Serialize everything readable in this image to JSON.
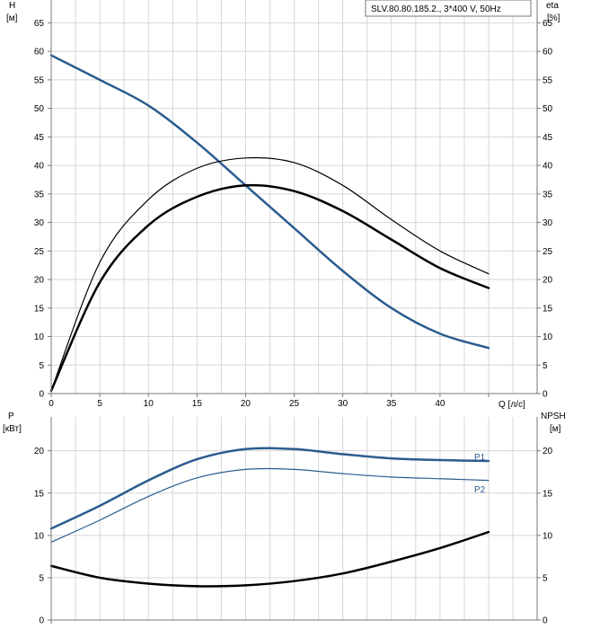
{
  "model_label": "SLV.80.80.185.2., 3*400 V, 50Hz",
  "chart_data": [
    {
      "type": "line",
      "id": "performance",
      "x_label": "Q [л/с]",
      "y_left_label": "H",
      "y_left_unit": "[м]",
      "y_right_label": "eta",
      "y_right_unit": "[%]",
      "xlim": [
        0,
        45
      ],
      "ylim": [
        0,
        69
      ],
      "grid": true,
      "x_ticks": [
        0,
        5,
        10,
        15,
        20,
        25,
        30,
        35,
        40
      ],
      "x_tick_labels": [
        "0",
        "5",
        "10",
        "15",
        "20",
        "25",
        "30",
        "35",
        "40"
      ],
      "y_left_ticks": [
        0,
        5,
        10,
        15,
        20,
        25,
        30,
        35,
        40,
        45,
        50,
        55,
        60,
        65
      ],
      "y_left_tick_labels": [
        "0",
        "5",
        "10",
        "15",
        "20",
        "25",
        "30",
        "35",
        "40",
        "45",
        "50",
        "55",
        "60",
        "65"
      ],
      "y_right_ticks": [
        0,
        5,
        10,
        15,
        20,
        25,
        30,
        35,
        40,
        45,
        50,
        55,
        60,
        65
      ],
      "y_right_tick_labels": [
        "0",
        "5",
        "10",
        "15",
        "20",
        "25",
        "30",
        "35",
        "40",
        "45",
        "50",
        "55",
        "60",
        "65"
      ],
      "series": [
        {
          "key": "head",
          "color": "#2b5c8f",
          "width": 2.5,
          "x": [
            0,
            5,
            10,
            15,
            20,
            25,
            30,
            35,
            40,
            45
          ],
          "y": [
            59.3,
            55.0,
            50.5,
            44.0,
            36.5,
            29.0,
            21.5,
            15.0,
            10.5,
            8.0
          ]
        },
        {
          "key": "eta_thin",
          "color": "#000000",
          "width": 1.2,
          "x": [
            0,
            5,
            10,
            15,
            20,
            25,
            30,
            35,
            40,
            45
          ],
          "y": [
            0.5,
            23.0,
            34.0,
            39.5,
            41.3,
            40.5,
            36.5,
            30.5,
            25.0,
            21.0
          ]
        },
        {
          "key": "eta_thick",
          "color": "#000000",
          "width": 2.5,
          "x": [
            0,
            5,
            10,
            15,
            20,
            25,
            30,
            35,
            40,
            45
          ],
          "y": [
            0.5,
            19.5,
            29.5,
            34.5,
            36.5,
            35.5,
            32.0,
            27.0,
            22.0,
            18.5
          ]
        }
      ]
    },
    {
      "type": "line",
      "id": "power",
      "y_left_label": "P",
      "y_left_unit": "[кВт]",
      "y_right_label": "NPSH",
      "y_right_unit": "[м]",
      "xlim": [
        0,
        45
      ],
      "ylim": [
        0,
        24
      ],
      "grid": true,
      "y_left_ticks": [
        0,
        5,
        10,
        15,
        20
      ],
      "y_left_tick_labels": [
        "0",
        "5",
        "10",
        "15",
        "20"
      ],
      "y_right_ticks": [
        0,
        5,
        10,
        15,
        20
      ],
      "y_right_tick_labels": [
        "0",
        "5",
        "10",
        "15",
        "20"
      ],
      "series": [
        {
          "key": "p1",
          "name": "P1",
          "color": "#2b5c8f",
          "width": 2.5,
          "x": [
            0,
            5,
            10,
            15,
            20,
            25,
            30,
            35,
            40,
            45
          ],
          "y": [
            10.8,
            13.5,
            16.5,
            19.0,
            20.2,
            20.2,
            19.6,
            19.1,
            18.9,
            18.8
          ]
        },
        {
          "key": "p2",
          "name": "P2",
          "color": "#2b5c8f",
          "width": 1.2,
          "x": [
            0,
            5,
            10,
            15,
            20,
            25,
            30,
            35,
            40,
            45
          ],
          "y": [
            9.2,
            11.8,
            14.6,
            16.8,
            17.8,
            17.8,
            17.3,
            16.9,
            16.7,
            16.5
          ]
        },
        {
          "key": "npsh",
          "color": "#000000",
          "width": 2.5,
          "x": [
            0,
            5,
            10,
            15,
            20,
            25,
            30,
            35,
            40,
            45
          ],
          "y": [
            6.4,
            5.0,
            4.3,
            4.0,
            4.1,
            4.6,
            5.5,
            6.9,
            8.5,
            10.4
          ]
        }
      ]
    }
  ]
}
